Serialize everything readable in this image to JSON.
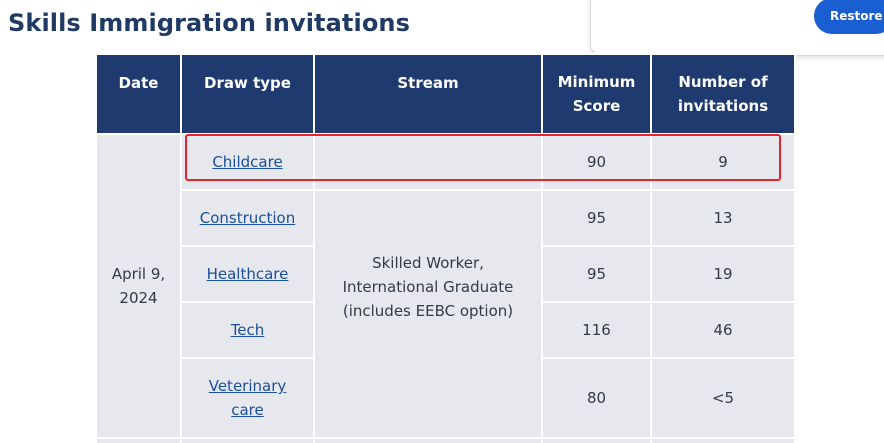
{
  "page": {
    "title": "Skills Immigration invitations"
  },
  "popup": {
    "restore_label": "Restore"
  },
  "table": {
    "headers": {
      "date": "Date",
      "draw_type": "Draw type",
      "stream": "Stream",
      "min_score_line1": "Minimum",
      "min_score_line2": "Score",
      "invitations_line1": "Number of",
      "invitations_line2": "invitations"
    },
    "group": {
      "date_line1": "April 9,",
      "date_line2": "2024",
      "stream_line1": "Skilled Worker,",
      "stream_line2": "International Graduate",
      "stream_line3": "(includes EEBC option)"
    },
    "rows": [
      {
        "draw_type": "Childcare",
        "min_score": "90",
        "invitations": "9"
      },
      {
        "draw_type": "Construction",
        "min_score": "95",
        "invitations": "13"
      },
      {
        "draw_type": "Healthcare",
        "min_score": "95",
        "invitations": "19"
      },
      {
        "draw_type": "Tech",
        "min_score": "116",
        "invitations": "46"
      },
      {
        "draw_type_line1": "Veterinary",
        "draw_type_line2": "care",
        "min_score": "80",
        "invitations": "<5"
      }
    ]
  },
  "colors": {
    "header_bg": "#1f3a6e",
    "cell_bg": "#e6e8ee",
    "link": "#1a4f9c",
    "title": "#1f3a64",
    "highlight": "#e8242a",
    "button": "#1a5fd1"
  }
}
